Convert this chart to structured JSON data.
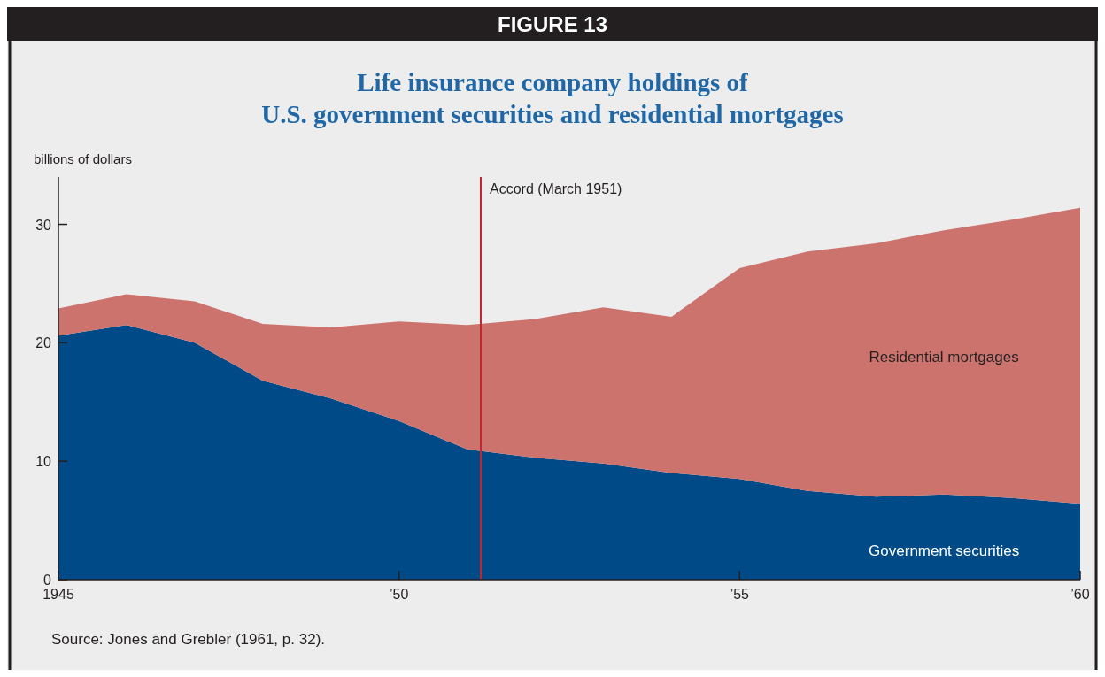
{
  "chart_data": {
    "type": "area",
    "stacked": true,
    "title": "FIGURE 13",
    "subtitle": "Life insurance company holdings of\nU.S. government securities and residential mortgages",
    "ylabel": "billions of dollars",
    "x": [
      1945,
      1946,
      1947,
      1948,
      1949,
      1950,
      1951,
      1952,
      1953,
      1954,
      1955,
      1956,
      1957,
      1958,
      1959,
      1960
    ],
    "series": [
      {
        "name": "Government securities",
        "color": "#004b87",
        "values": [
          20.6,
          21.5,
          20.0,
          16.8,
          15.3,
          13.4,
          11.0,
          10.3,
          9.8,
          9.0,
          8.5,
          7.5,
          7.0,
          7.2,
          6.9,
          6.4
        ]
      },
      {
        "name": "Residential mortgages",
        "color": "#cc736e",
        "values": [
          2.3,
          2.6,
          3.5,
          4.8,
          6.0,
          8.4,
          10.5,
          11.7,
          13.2,
          13.2,
          17.8,
          20.2,
          21.4,
          22.3,
          23.5,
          25.0
        ]
      }
    ],
    "xlim": [
      1945,
      1960
    ],
    "xticks": [
      1945,
      {
        "value": 1950,
        "label": "’50"
      },
      {
        "value": 1955,
        "label": "’55"
      },
      {
        "value": 1960,
        "label": "’60"
      }
    ],
    "ylim": [
      0,
      34
    ],
    "yticks": [
      0,
      10,
      20,
      30
    ],
    "ref_lines": [
      {
        "axis": "x",
        "value": 1951.2,
        "label": "Accord (March 1951)",
        "color": "#c0272d"
      }
    ],
    "annotations": [
      "Source: Jones and Grebler (1961, p. 32)."
    ]
  }
}
